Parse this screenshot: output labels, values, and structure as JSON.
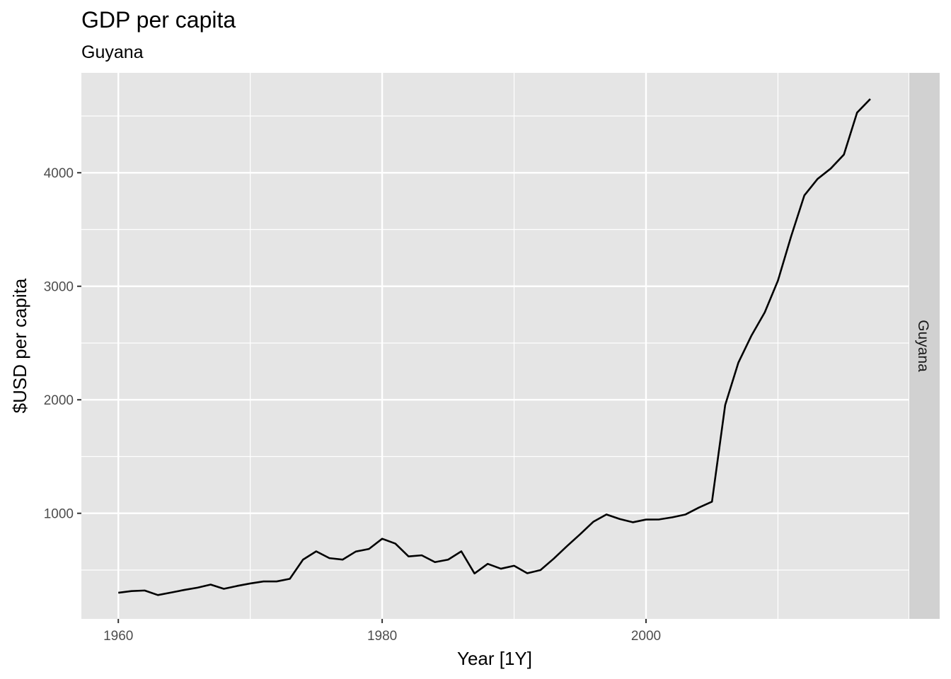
{
  "chart_data": {
    "type": "line",
    "title": "GDP per capita",
    "subtitle": "Guyana",
    "xlabel": "Year [1Y]",
    "ylabel": "$USD per capita",
    "facet_label": "Guyana",
    "xlim": [
      1957.2,
      2019.9
    ],
    "ylim": [
      70,
      4880
    ],
    "x_ticks": [
      1960,
      1980,
      2000
    ],
    "x_minor_ticks": [
      1970,
      1990,
      2010
    ],
    "y_ticks": [
      1000,
      2000,
      3000,
      4000
    ],
    "y_minor_ticks": [
      500,
      1500,
      2500,
      3500,
      4500
    ],
    "grid": true,
    "colors": {
      "panel": "#e5e5e5",
      "grid": "#ffffff",
      "strip": "#d1d1d1",
      "line": "#000000"
    },
    "series": [
      {
        "x": [
          1960,
          1961,
          1962,
          1963,
          1964,
          1965,
          1966,
          1967,
          1968,
          1969,
          1970,
          1971,
          1972,
          1973,
          1974,
          1975,
          1976,
          1977,
          1978,
          1979,
          1980,
          1981,
          1982,
          1983,
          1984,
          1985,
          1986,
          1987,
          1988,
          1989,
          1990,
          1991,
          1992,
          1993,
          1994,
          1995,
          1996,
          1997,
          1998,
          1999,
          2000,
          2001,
          2002,
          2003,
          2004,
          2005,
          2006,
          2007,
          2008,
          2009,
          2010,
          2011,
          2012,
          2013,
          2014,
          2015,
          2016,
          2017
        ],
        "values": [
          300,
          315,
          320,
          280,
          302,
          325,
          345,
          372,
          335,
          360,
          382,
          400,
          400,
          423,
          592,
          665,
          605,
          592,
          663,
          686,
          776,
          733,
          620,
          630,
          570,
          592,
          665,
          470,
          555,
          512,
          538,
          472,
          500,
          600,
          710,
          815,
          925,
          990,
          950,
          921,
          945,
          946,
          965,
          990,
          1050,
          1102,
          1953,
          2327,
          2567,
          2770,
          3050,
          3440,
          3800,
          3945,
          4037,
          4160,
          4530,
          4650
        ]
      }
    ]
  }
}
